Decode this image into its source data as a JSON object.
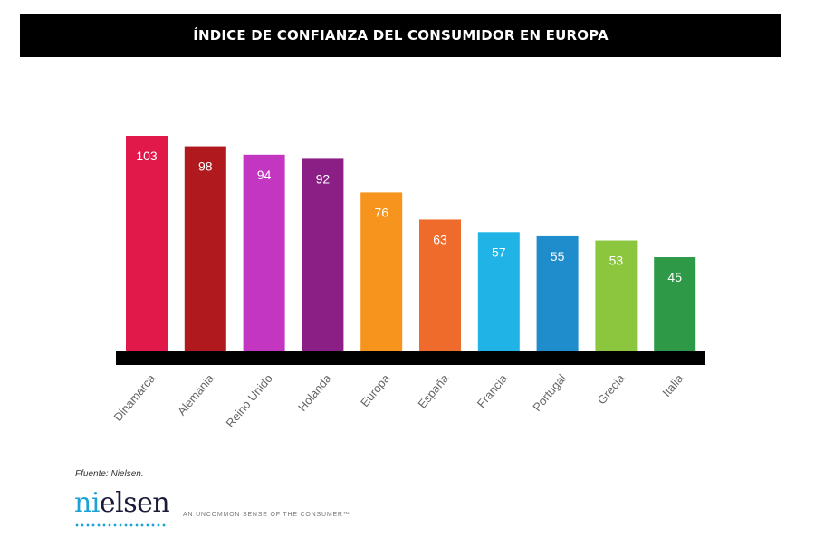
{
  "header": {
    "title": "ÍNDICE DE CONFIANZA DEL CONSUMIDOR EN EUROPA"
  },
  "chart_data": {
    "type": "bar",
    "title": "ÍNDICE DE CONFIANZA DEL CONSUMIDOR EN EUROPA",
    "categories": [
      "Dinamarca",
      "Alemania",
      "Reino Unido",
      "Holanda",
      "Europa",
      "España",
      "Francia",
      "Portugal",
      "Grecia",
      "Italia"
    ],
    "values": [
      103,
      98,
      94,
      92,
      76,
      63,
      57,
      55,
      53,
      45
    ],
    "colors": [
      "#e0194a",
      "#b01a1e",
      "#c236c2",
      "#8b1f86",
      "#f7941d",
      "#ef6b2c",
      "#20b4e6",
      "#1f8ccc",
      "#8cc63f",
      "#2e9a48"
    ],
    "ylim": [
      0,
      103
    ],
    "xlabel": "",
    "ylabel": "",
    "grid": false,
    "legend": "none"
  },
  "footer": {
    "source": "Ffuente: Nielsen.",
    "logo_main": "elsen",
    "logo_accent": "ni",
    "tagline": "AN UNCOMMON SENSE OF THE CONSUMER™"
  }
}
